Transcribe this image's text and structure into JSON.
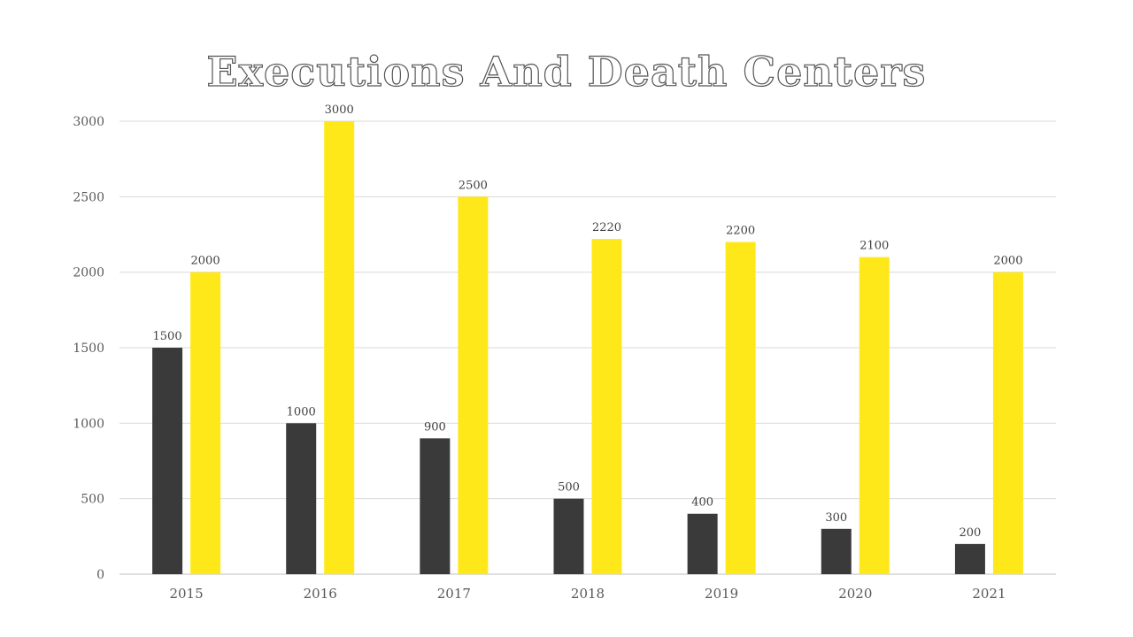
{
  "chart_data": {
    "type": "bar",
    "title": "Executions And Death Centers",
    "categories": [
      "2015",
      "2016",
      "2017",
      "2018",
      "2019",
      "2020",
      "2021"
    ],
    "series": [
      {
        "values": [
          1500,
          1000,
          900,
          500,
          400,
          300,
          200
        ],
        "color": "#3a3a3a"
      },
      {
        "values": [
          2000,
          3000,
          2500,
          2220,
          2200,
          2100,
          2000
        ],
        "color": "#ffe81a"
      }
    ],
    "ylim": [
      0,
      3000
    ],
    "yticks": [
      "0",
      "500",
      "1000",
      "1500",
      "2000",
      "2500",
      "3000"
    ],
    "grid": true,
    "data_labels": true
  }
}
